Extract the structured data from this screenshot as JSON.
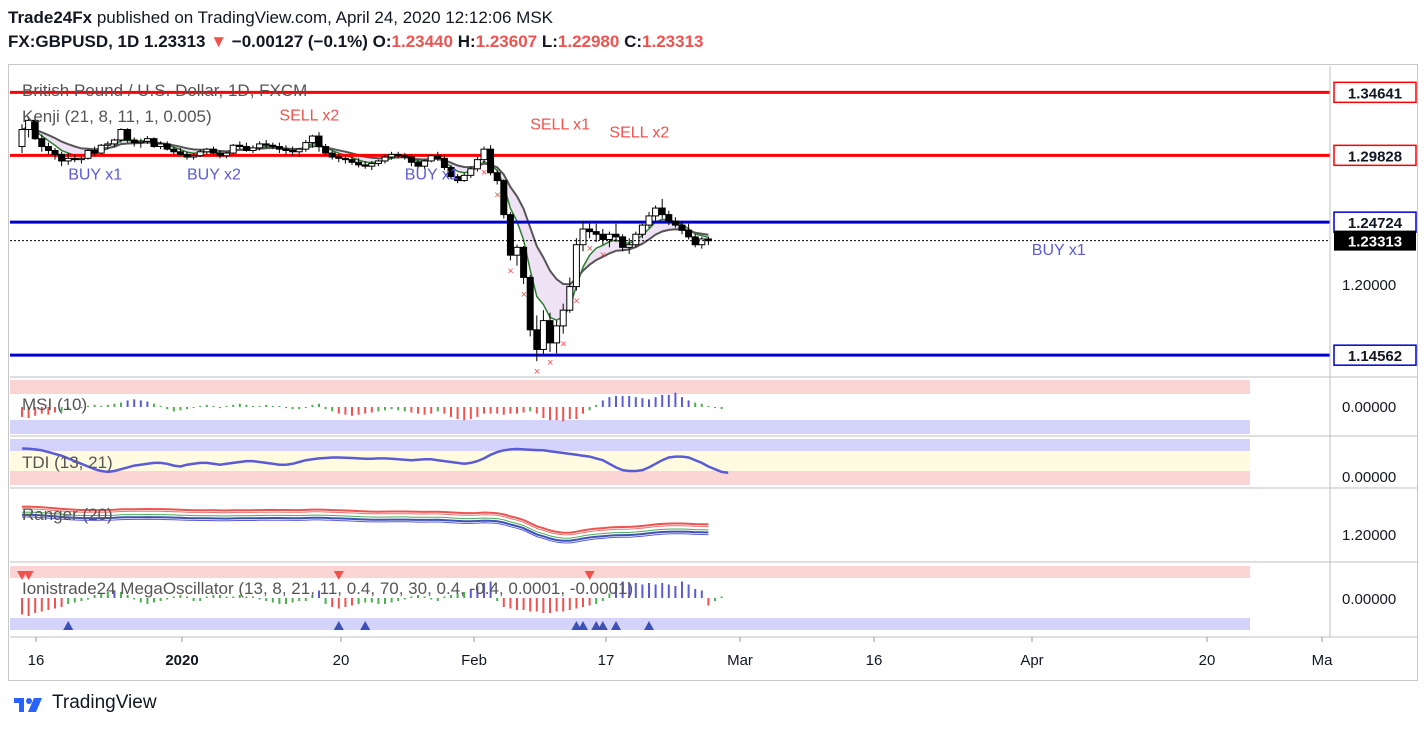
{
  "header": {
    "author": "Trade24Fx",
    "published": "published on TradingView.com, April 24, 2020 12:12:06 MSK",
    "symbol": "FX:GBPUSD, 1D",
    "last": "1.23313",
    "arrow": "▼",
    "change": "−0.00127 (−0.1%)",
    "o_label": "O:",
    "o": "1.23440",
    "h_label": "H:",
    "h": "1.23607",
    "l_label": "L:",
    "l": "1.22980",
    "c_label": "C:",
    "c": "1.23313"
  },
  "footer": {
    "brand": "TradingView"
  },
  "colors": {
    "up_candle": "#ffffff",
    "down_candle": "#000000",
    "red_level": "#ff0000",
    "blue_level": "#0000cc",
    "red_text": "#ef5350",
    "blue_text": "#5b5bd6",
    "green": "#4caf50"
  },
  "chart_data": [
    {
      "type": "candlestick",
      "title": "British Pound / U.S. Dollar, 1D, FXCM",
      "indicator_label": "Kenji (21, 8, 11, 1, 0.005)",
      "x_tick_labels": [
        "16",
        "2020",
        "20",
        "Feb",
        "17",
        "Mar",
        "16",
        "Apr",
        "20",
        "Ma"
      ],
      "y_tick_labels": [
        "1.20000"
      ],
      "ylim": [
        1.132,
        1.365
      ],
      "levels": [
        {
          "value": 1.34641,
          "color": "red",
          "label": "1.34641"
        },
        {
          "value": 1.29828,
          "color": "red",
          "label": "1.29828"
        },
        {
          "value": 1.24724,
          "color": "blue",
          "label": "1.24724"
        },
        {
          "value": 1.14562,
          "color": "blue",
          "label": "1.14562"
        }
      ],
      "last_price": {
        "value": 1.23313,
        "label": "1.23313"
      },
      "signals": [
        {
          "text": "BUY x1",
          "type": "buy",
          "x": 7,
          "y": 1.28
        },
        {
          "text": "BUY x2",
          "type": "buy",
          "x": 25,
          "y": 1.28
        },
        {
          "text": "BUY x1",
          "type": "buy",
          "x": 58,
          "y": 1.28
        },
        {
          "text": "SELL x2",
          "type": "sell",
          "x": 39,
          "y": 1.325
        },
        {
          "text": "SELL x1",
          "type": "sell",
          "x": 77,
          "y": 1.318
        },
        {
          "text": "SELL x2",
          "type": "sell",
          "x": 89,
          "y": 1.312
        },
        {
          "text": "BUY x1",
          "type": "buy",
          "x": 153,
          "y": 1.222
        }
      ],
      "candles": [
        [
          1.305,
          1.322,
          1.3,
          1.318
        ],
        [
          1.318,
          1.328,
          1.312,
          1.325
        ],
        [
          1.325,
          1.328,
          1.31,
          1.311
        ],
        [
          1.311,
          1.314,
          1.301,
          1.305
        ],
        [
          1.305,
          1.308,
          1.299,
          1.302
        ],
        [
          1.302,
          1.304,
          1.295,
          1.299
        ],
        [
          1.299,
          1.301,
          1.29,
          1.294
        ],
        [
          1.294,
          1.3,
          1.291,
          1.296
        ],
        [
          1.296,
          1.299,
          1.293,
          1.295
        ],
        [
          1.295,
          1.298,
          1.292,
          1.296
        ],
        [
          1.296,
          1.303,
          1.295,
          1.302
        ],
        [
          1.302,
          1.305,
          1.298,
          1.3
        ],
        [
          1.3,
          1.307,
          1.299,
          1.306
        ],
        [
          1.306,
          1.309,
          1.303,
          1.307
        ],
        [
          1.307,
          1.311,
          1.305,
          1.31
        ],
        [
          1.31,
          1.319,
          1.308,
          1.318
        ],
        [
          1.318,
          1.319,
          1.308,
          1.31
        ],
        [
          1.31,
          1.312,
          1.305,
          1.308
        ],
        [
          1.308,
          1.311,
          1.304,
          1.309
        ],
        [
          1.309,
          1.313,
          1.307,
          1.311
        ],
        [
          1.311,
          1.312,
          1.304,
          1.305
        ],
        [
          1.305,
          1.309,
          1.303,
          1.307
        ],
        [
          1.307,
          1.309,
          1.302,
          1.303
        ],
        [
          1.303,
          1.305,
          1.299,
          1.301
        ],
        [
          1.301,
          1.304,
          1.298,
          1.299
        ],
        [
          1.299,
          1.301,
          1.295,
          1.297
        ],
        [
          1.297,
          1.3,
          1.295,
          1.298
        ],
        [
          1.298,
          1.303,
          1.297,
          1.301
        ],
        [
          1.301,
          1.304,
          1.299,
          1.303
        ],
        [
          1.303,
          1.305,
          1.299,
          1.3
        ],
        [
          1.3,
          1.302,
          1.296,
          1.298
        ],
        [
          1.298,
          1.301,
          1.296,
          1.3
        ],
        [
          1.3,
          1.307,
          1.299,
          1.306
        ],
        [
          1.306,
          1.309,
          1.303,
          1.305
        ],
        [
          1.305,
          1.308,
          1.301,
          1.302
        ],
        [
          1.302,
          1.306,
          1.3,
          1.304
        ],
        [
          1.304,
          1.309,
          1.302,
          1.307
        ],
        [
          1.307,
          1.31,
          1.304,
          1.306
        ],
        [
          1.306,
          1.308,
          1.303,
          1.305
        ],
        [
          1.305,
          1.308,
          1.3,
          1.303
        ],
        [
          1.303,
          1.306,
          1.299,
          1.302
        ],
        [
          1.302,
          1.305,
          1.298,
          1.301
        ],
        [
          1.301,
          1.304,
          1.297,
          1.303
        ],
        [
          1.303,
          1.31,
          1.301,
          1.308
        ],
        [
          1.308,
          1.314,
          1.304,
          1.313
        ],
        [
          1.313,
          1.316,
          1.301,
          1.305
        ],
        [
          1.305,
          1.307,
          1.298,
          1.3
        ],
        [
          1.3,
          1.302,
          1.295,
          1.297
        ],
        [
          1.297,
          1.299,
          1.293,
          1.296
        ],
        [
          1.296,
          1.298,
          1.292,
          1.295
        ],
        [
          1.295,
          1.297,
          1.291,
          1.293
        ],
        [
          1.293,
          1.296,
          1.289,
          1.291
        ],
        [
          1.291,
          1.294,
          1.288,
          1.29
        ],
        [
          1.29,
          1.294,
          1.287,
          1.292
        ],
        [
          1.292,
          1.295,
          1.29,
          1.294
        ],
        [
          1.294,
          1.299,
          1.292,
          1.297
        ],
        [
          1.297,
          1.301,
          1.295,
          1.299
        ],
        [
          1.299,
          1.301,
          1.296,
          1.298
        ],
        [
          1.298,
          1.3,
          1.295,
          1.297
        ],
        [
          1.297,
          1.299,
          1.29,
          1.293
        ],
        [
          1.293,
          1.295,
          1.288,
          1.29
        ],
        [
          1.29,
          1.295,
          1.288,
          1.294
        ],
        [
          1.294,
          1.299,
          1.293,
          1.298
        ],
        [
          1.298,
          1.301,
          1.294,
          1.296
        ],
        [
          1.296,
          1.298,
          1.287,
          1.289
        ],
        [
          1.289,
          1.291,
          1.28,
          1.282
        ],
        [
          1.282,
          1.284,
          1.277,
          1.279
        ],
        [
          1.279,
          1.285,
          1.278,
          1.283
        ],
        [
          1.283,
          1.29,
          1.281,
          1.288
        ],
        [
          1.288,
          1.297,
          1.286,
          1.295
        ],
        [
          1.295,
          1.305,
          1.293,
          1.303
        ],
        [
          1.303,
          1.306,
          1.283,
          1.285
        ],
        [
          1.285,
          1.287,
          1.276,
          1.279
        ],
        [
          1.279,
          1.28,
          1.25,
          1.253
        ],
        [
          1.253,
          1.255,
          1.218,
          1.222
        ],
        [
          1.222,
          1.23,
          1.214,
          1.228
        ],
        [
          1.228,
          1.229,
          1.2,
          1.205
        ],
        [
          1.205,
          1.207,
          1.16,
          1.165
        ],
        [
          1.165,
          1.176,
          1.141,
          1.15
        ],
        [
          1.15,
          1.18,
          1.145,
          1.172
        ],
        [
          1.172,
          1.178,
          1.148,
          1.155
        ],
        [
          1.155,
          1.172,
          1.147,
          1.168
        ],
        [
          1.168,
          1.185,
          1.162,
          1.18
        ],
        [
          1.18,
          1.205,
          1.178,
          1.198
        ],
        [
          1.198,
          1.235,
          1.195,
          1.23
        ],
        [
          1.23,
          1.248,
          1.225,
          1.242
        ],
        [
          1.242,
          1.248,
          1.235,
          1.24
        ],
        [
          1.24,
          1.246,
          1.232,
          1.238
        ],
        [
          1.238,
          1.242,
          1.23,
          1.234
        ],
        [
          1.234,
          1.24,
          1.228,
          1.238
        ],
        [
          1.238,
          1.246,
          1.232,
          1.236
        ],
        [
          1.236,
          1.238,
          1.225,
          1.228
        ],
        [
          1.228,
          1.235,
          1.223,
          1.23
        ],
        [
          1.23,
          1.24,
          1.228,
          1.238
        ],
        [
          1.238,
          1.246,
          1.235,
          1.245
        ],
        [
          1.245,
          1.255,
          1.243,
          1.252
        ],
        [
          1.252,
          1.26,
          1.248,
          1.258
        ],
        [
          1.258,
          1.265,
          1.25,
          1.253
        ],
        [
          1.253,
          1.256,
          1.245,
          1.248
        ],
        [
          1.248,
          1.251,
          1.243,
          1.245
        ],
        [
          1.245,
          1.248,
          1.238,
          1.241
        ],
        [
          1.241,
          1.246,
          1.234,
          1.236
        ],
        [
          1.236,
          1.238,
          1.228,
          1.23
        ],
        [
          1.23,
          1.236,
          1.227,
          1.2344
        ],
        [
          1.2344,
          1.2361,
          1.2298,
          1.2331
        ]
      ]
    },
    {
      "type": "bar",
      "indicator_label": "MSI (10)",
      "y_tick_labels": [
        "0.00000"
      ],
      "ylim": [
        -1,
        1
      ],
      "values": [
        -0.45,
        -0.5,
        -0.4,
        -0.3,
        -0.35,
        -0.25,
        -0.2,
        -0.1,
        -0.05,
        -0.05,
        0.05,
        0.1,
        0.05,
        0.1,
        0.15,
        0.2,
        0.3,
        0.35,
        0.3,
        0.25,
        0.15,
        0.05,
        -0.1,
        -0.2,
        -0.15,
        -0.1,
        -0.05,
        0.05,
        0.1,
        0.05,
        -0.05,
        0.05,
        0.1,
        0.15,
        0.1,
        0.05,
        0.05,
        0.1,
        0.05,
        0.05,
        -0.05,
        -0.1,
        -0.1,
        -0.05,
        0.1,
        0.15,
        -0.1,
        -0.2,
        -0.3,
        -0.35,
        -0.4,
        -0.35,
        -0.3,
        -0.25,
        -0.2,
        -0.15,
        -0.1,
        -0.15,
        -0.2,
        -0.25,
        -0.3,
        -0.35,
        -0.3,
        -0.2,
        -0.3,
        -0.45,
        -0.55,
        -0.6,
        -0.55,
        -0.45,
        -0.3,
        -0.3,
        -0.3,
        -0.35,
        -0.3,
        -0.3,
        -0.25,
        -0.2,
        -0.3,
        -0.5,
        -0.6,
        -0.6,
        -0.65,
        -0.55,
        -0.55,
        -0.3,
        -0.15,
        0.1,
        0.3,
        0.45,
        0.5,
        0.5,
        0.5,
        0.45,
        0.4,
        0.35,
        0.45,
        0.55,
        0.55,
        0.65,
        0.45,
        0.3,
        0.2,
        0.15,
        0.05,
        -0.05,
        -0.1
      ]
    },
    {
      "type": "line",
      "indicator_label": "TDI (13, 21)",
      "y_tick_labels": [
        "0.00000"
      ],
      "ylim": [
        -1,
        1
      ],
      "values": [
        0.75,
        0.74,
        0.7,
        0.65,
        0.55,
        0.45,
        0.35,
        0.2,
        0.05,
        -0.1,
        -0.25,
        -0.4,
        -0.5,
        -0.55,
        -0.5,
        -0.4,
        -0.3,
        -0.2,
        -0.15,
        -0.1,
        -0.05,
        -0.05,
        -0.1,
        -0.2,
        -0.25,
        -0.15,
        -0.1,
        -0.05,
        -0.05,
        -0.1,
        -0.15,
        -0.1,
        -0.05,
        0.0,
        0.05,
        0.05,
        0.0,
        -0.05,
        -0.1,
        -0.15,
        -0.15,
        -0.1,
        0.0,
        0.1,
        0.15,
        0.2,
        0.22,
        0.25,
        0.25,
        0.24,
        0.22,
        0.2,
        0.18,
        0.18,
        0.2,
        0.2,
        0.18,
        0.15,
        0.12,
        0.1,
        0.12,
        0.15,
        0.15,
        0.1,
        0.05,
        0.0,
        -0.05,
        -0.1,
        -0.05,
        0.05,
        0.2,
        0.4,
        0.55,
        0.65,
        0.7,
        0.72,
        0.7,
        0.68,
        0.66,
        0.65,
        0.6,
        0.55,
        0.5,
        0.45,
        0.4,
        0.35,
        0.3,
        0.2,
        0.1,
        -0.1,
        -0.3,
        -0.45,
        -0.5,
        -0.5,
        -0.45,
        -0.3,
        -0.1,
        0.1,
        0.25,
        0.3,
        0.3,
        0.25,
        0.1,
        -0.05,
        -0.25,
        -0.4,
        -0.55,
        -0.6
      ]
    },
    {
      "type": "line",
      "indicator_label": "Ranger (20)",
      "y_tick_labels": [
        "1.20000"
      ],
      "ylim": [
        1.1,
        1.42
      ]
    },
    {
      "type": "bar",
      "indicator_label": "Ionistrade24 MegaOscillator (13, 8, 21, 11, 0.4, 70, 30, 0.4, -0.4, 0.0001, -0.0001)",
      "y_tick_labels": [
        "0.00000"
      ],
      "ylim": [
        -1,
        1
      ],
      "values": [
        -0.55,
        -0.6,
        -0.5,
        -0.45,
        -0.4,
        -0.35,
        -0.3,
        -0.2,
        -0.15,
        -0.1,
        -0.05,
        0.1,
        0.15,
        0.2,
        0.25,
        0.2,
        0.1,
        -0.05,
        -0.15,
        -0.2,
        -0.15,
        -0.1,
        -0.05,
        0.05,
        0.1,
        0.05,
        -0.1,
        -0.1,
        0.05,
        0.1,
        0.1,
        0.05,
        0.05,
        0.1,
        0.05,
        0.05,
        -0.05,
        -0.1,
        -0.15,
        -0.2,
        -0.2,
        -0.15,
        -0.1,
        -0.1,
        0.1,
        0.25,
        -0.2,
        -0.3,
        -0.35,
        -0.3,
        -0.25,
        -0.2,
        -0.15,
        -0.15,
        -0.2,
        -0.2,
        -0.15,
        -0.1,
        -0.05,
        0.05,
        0.1,
        0.05,
        -0.05,
        -0.1,
        0.05,
        0.1,
        0.15,
        0.2,
        0.3,
        0.4,
        0.5,
        0.55,
        -0.1,
        -0.3,
        -0.35,
        -0.4,
        -0.4,
        -0.45,
        -0.45,
        -0.5,
        -0.5,
        -0.45,
        -0.45,
        -0.4,
        -0.35,
        -0.3,
        -0.25,
        -0.2,
        -0.1,
        0.15,
        0.5,
        0.55,
        0.5,
        0.5,
        0.45,
        0.5,
        0.45,
        0.5,
        0.45,
        0.4,
        0.55,
        0.45,
        0.3,
        0.25,
        -0.25,
        -0.1,
        0.05
      ]
    }
  ]
}
